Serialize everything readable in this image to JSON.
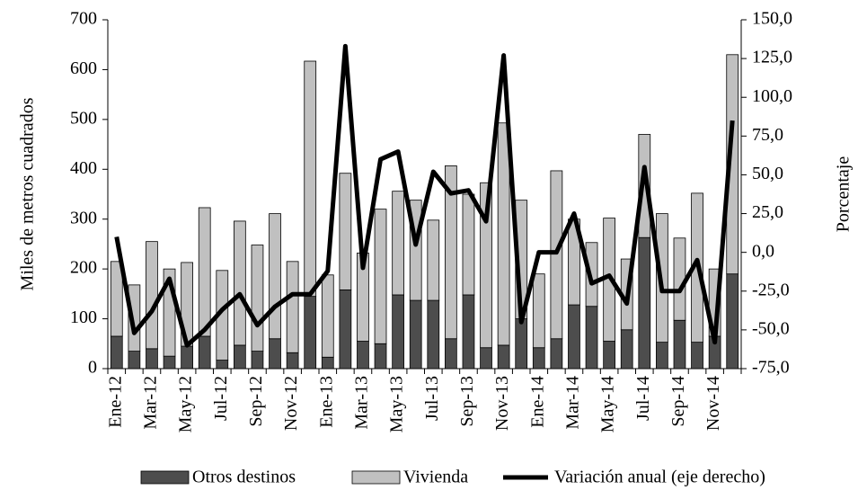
{
  "chart_data": {
    "type": "bar",
    "stacked": true,
    "categories": [
      "Ene-12",
      null,
      "Mar-12",
      null,
      "May-12",
      null,
      "Jul-12",
      null,
      "Sep-12",
      null,
      "Nov-12",
      null,
      "Ene-13",
      null,
      "Mar-13",
      null,
      "May-13",
      null,
      "Jul-13",
      null,
      "Sep-13",
      null,
      "Nov-13",
      null,
      "Ene-14",
      null,
      "Mar-14",
      null,
      "May-14",
      null,
      "Jul-14",
      null,
      "Sep-14",
      null,
      "Nov-14",
      null
    ],
    "series": [
      {
        "name": "Otros destinos",
        "color": "#4d4d4d",
        "values": [
          65,
          35,
          40,
          25,
          45,
          65,
          17,
          47,
          35,
          60,
          32,
          145,
          23,
          158,
          55,
          50,
          148,
          137,
          137,
          60,
          148,
          42,
          47,
          100,
          42,
          60,
          128,
          125,
          55,
          78,
          263,
          53,
          97,
          53,
          65,
          190
        ]
      },
      {
        "name": "Vivienda",
        "color": "#c0c0c0",
        "values": [
          150,
          133,
          215,
          175,
          168,
          258,
          180,
          249,
          213,
          251,
          183,
          472,
          165,
          234,
          177,
          270,
          208,
          201,
          161,
          347,
          202,
          331,
          446,
          238,
          148,
          337,
          172,
          128,
          247,
          142,
          207,
          258,
          165,
          299,
          135,
          440
        ]
      },
      {
        "name": "Variación anual (eje derecho)",
        "color": "#000000",
        "type": "line",
        "axis": "y2",
        "values": [
          10,
          -52,
          -38,
          -17,
          -60,
          -50,
          -37,
          -27,
          -47,
          -35,
          -27,
          -27,
          -12,
          133,
          -10,
          60,
          65,
          5,
          52,
          38,
          40,
          20,
          127,
          -45,
          0,
          0,
          25,
          -20,
          -15,
          -33,
          55,
          -25,
          -25,
          -5,
          -58,
          85
        ]
      }
    ],
    "ylabel": "Miles de metros  cuadrados",
    "y2label": "Porcentaje",
    "ylim": [
      0,
      700
    ],
    "yticks": [
      0,
      100,
      200,
      300,
      400,
      500,
      600,
      700
    ],
    "y2lim": [
      -75,
      150
    ],
    "y2ticks": [
      {
        "value": -75,
        "label": "-75,0"
      },
      {
        "value": -50,
        "label": "-50,0"
      },
      {
        "value": -25,
        "label": "-25,0"
      },
      {
        "value": 0,
        "label": "0,0"
      },
      {
        "value": 25,
        "label": "25,0"
      },
      {
        "value": 50,
        "label": "50,0"
      },
      {
        "value": 75,
        "label": "75,0"
      },
      {
        "value": 100,
        "label": "100,0"
      },
      {
        "value": 125,
        "label": "125,0"
      },
      {
        "value": 150,
        "label": "150,0"
      }
    ],
    "legend": "bottom"
  }
}
